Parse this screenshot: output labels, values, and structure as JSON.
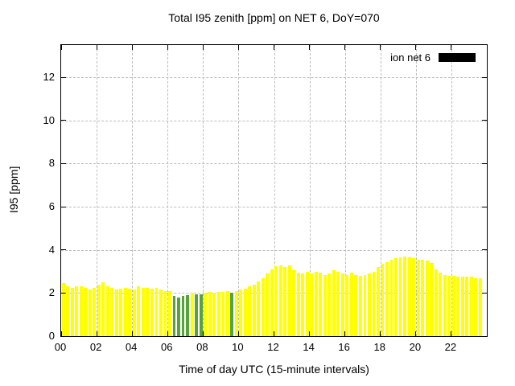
{
  "title": "Total I95 zenith [ppm] on NET 6, DoY=070",
  "xlabel": "Time of day UTC (15-minute intervals)",
  "ylabel": "I95 [ppm]",
  "legend": {
    "label": "ion net 6",
    "swatch_color": "#000000"
  },
  "colors": {
    "bar_yellow": "#ffff00",
    "bar_green": "#55a339",
    "grid": "#bdbdbd",
    "border": "#000000",
    "background": "#ffffff"
  },
  "chart_data": {
    "type": "bar",
    "title": "Total I95 zenith [ppm] on NET 6, DoY=070",
    "xlabel": "Time of day UTC (15-minute intervals)",
    "ylabel": "I95 [ppm]",
    "series_name": "ion net 6",
    "interval_minutes": 15,
    "ylim": [
      0,
      13.5
    ],
    "xlim_hours": [
      0,
      24
    ],
    "y_ticks": [
      0,
      2,
      4,
      6,
      8,
      10,
      12
    ],
    "x_ticks": {
      "values": [
        0,
        2,
        4,
        6,
        8,
        10,
        12,
        14,
        16,
        18,
        20,
        22
      ],
      "labels": [
        "00",
        "02",
        "04",
        "06",
        "08",
        "10",
        "12",
        "14",
        "16",
        "18",
        "20",
        "22"
      ]
    },
    "grid": true,
    "legend_position": "top-right-inside",
    "times": [
      "00:00",
      "00:15",
      "00:30",
      "00:45",
      "01:00",
      "01:15",
      "01:30",
      "01:45",
      "02:00",
      "02:15",
      "02:30",
      "02:45",
      "03:00",
      "03:15",
      "03:30",
      "03:45",
      "04:00",
      "04:15",
      "04:30",
      "04:45",
      "05:00",
      "05:15",
      "05:30",
      "05:45",
      "06:00",
      "06:15",
      "06:30",
      "06:45",
      "07:00",
      "07:15",
      "07:30",
      "07:45",
      "08:00",
      "08:15",
      "08:30",
      "08:45",
      "09:00",
      "09:15",
      "09:30",
      "09:45",
      "10:00",
      "10:15",
      "10:30",
      "10:45",
      "11:00",
      "11:15",
      "11:30",
      "11:45",
      "12:00",
      "12:15",
      "12:30",
      "12:45",
      "13:00",
      "13:15",
      "13:30",
      "13:45",
      "14:00",
      "14:15",
      "14:30",
      "14:45",
      "15:00",
      "15:15",
      "15:30",
      "15:45",
      "16:00",
      "16:15",
      "16:30",
      "16:45",
      "17:00",
      "17:15",
      "17:30",
      "17:45",
      "18:00",
      "18:15",
      "18:30",
      "18:45",
      "19:00",
      "19:15",
      "19:30",
      "19:45",
      "20:00",
      "20:15",
      "20:30",
      "20:45",
      "21:00",
      "21:15",
      "21:30",
      "21:45",
      "22:00",
      "22:15",
      "22:30",
      "22:45",
      "23:00",
      "23:15",
      "23:30"
    ],
    "values": [
      2.45,
      2.3,
      2.25,
      2.3,
      2.3,
      2.25,
      2.15,
      2.25,
      2.4,
      2.5,
      2.3,
      2.25,
      2.15,
      2.2,
      2.25,
      2.2,
      2.15,
      2.3,
      2.25,
      2.25,
      2.2,
      2.25,
      2.15,
      2.1,
      2.1,
      1.85,
      1.8,
      1.85,
      1.9,
      2.0,
      1.95,
      1.95,
      2.0,
      2.05,
      2.0,
      2.05,
      2.05,
      2.1,
      2.0,
      2.1,
      2.15,
      2.2,
      2.3,
      2.4,
      2.55,
      2.7,
      2.9,
      3.1,
      3.25,
      3.3,
      3.2,
      3.3,
      3.05,
      2.95,
      2.9,
      3.0,
      2.9,
      3.0,
      2.95,
      2.85,
      2.9,
      3.05,
      3.0,
      2.9,
      2.85,
      2.95,
      2.85,
      2.8,
      2.85,
      2.9,
      3.0,
      3.2,
      3.35,
      3.45,
      3.55,
      3.6,
      3.65,
      3.7,
      3.65,
      3.6,
      3.55,
      3.55,
      3.5,
      3.4,
      3.1,
      2.95,
      2.85,
      2.8,
      2.8,
      2.75,
      2.75,
      2.75,
      2.75,
      2.7,
      2.7
    ],
    "green_indices": [
      25,
      26,
      27,
      28,
      30,
      31,
      38
    ]
  }
}
